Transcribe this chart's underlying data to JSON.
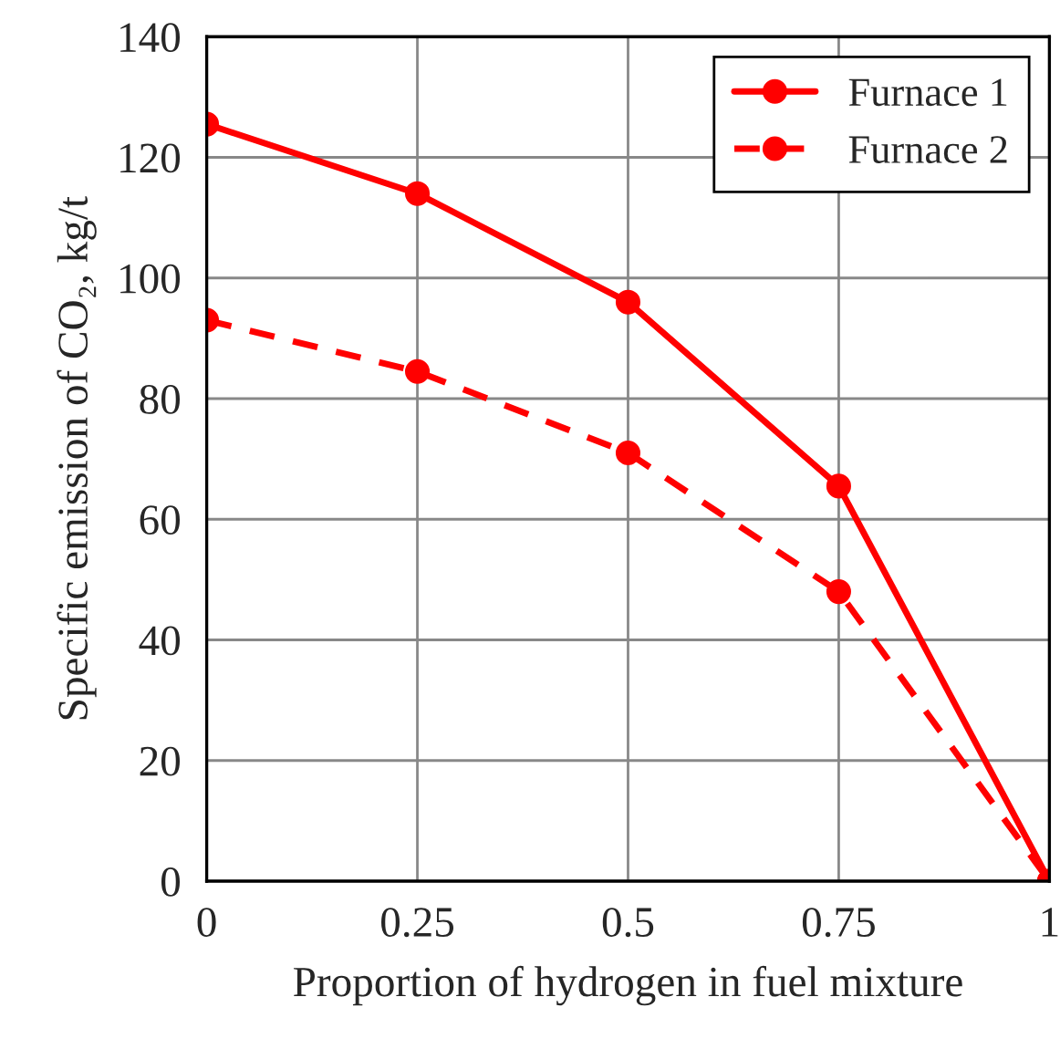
{
  "chart_data": {
    "type": "line",
    "xlabel": "Proportion of hydrogen in fuel mixture",
    "ylabel": "Specific emission of CO₂, kg/t",
    "x": [
      0,
      0.25,
      0.5,
      0.75,
      1
    ],
    "series": [
      {
        "name": "Furnace 1",
        "color": "#ff0000",
        "values": [
          125.5,
          114,
          96,
          65.5,
          0
        ],
        "line_style": "solid"
      },
      {
        "name": "Furnace 2",
        "color": "#ff0000",
        "values": [
          93,
          84.5,
          71,
          48,
          0
        ],
        "line_style": "dashed"
      }
    ],
    "xlim": [
      0,
      1
    ],
    "xticks": [
      0,
      0.25,
      0.5,
      0.75,
      1
    ],
    "ylim": [
      0,
      140
    ],
    "yticks": [
      0,
      20,
      40,
      60,
      80,
      100,
      120,
      140
    ],
    "grid": true,
    "legend": "top right",
    "marker": "circle"
  }
}
